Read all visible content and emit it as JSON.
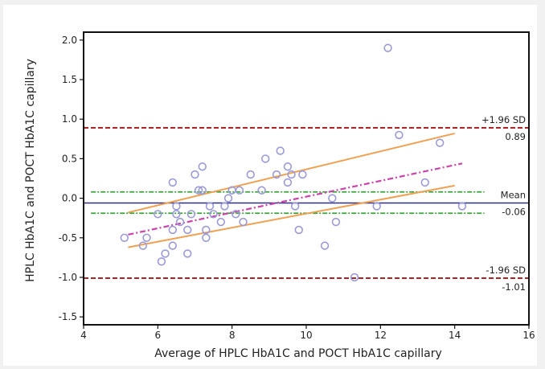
{
  "chart_data": {
    "type": "scatter",
    "title": "",
    "xlabel": "Average of HPLC HbA1C and POCT HbA1C capillary",
    "ylabel": "HPLC HbA1C and POCT HbA1C capillary",
    "xlim": [
      4,
      16
    ],
    "ylim": [
      -1.6,
      2.1
    ],
    "xticks": [
      4,
      6,
      8,
      10,
      12,
      14,
      16
    ],
    "yticks": [
      -1.5,
      -1.0,
      -0.5,
      0.0,
      0.5,
      1.0,
      1.5,
      2.0
    ],
    "xtick_labels": [
      "4",
      "6",
      "8",
      "10",
      "12",
      "14",
      "16"
    ],
    "ytick_labels": [
      "-1.5",
      "-1.0",
      "-0.5",
      "0.0",
      "0.5",
      "1.0",
      "1.5",
      "2.0"
    ],
    "grid": false,
    "points": [
      {
        "x": 5.1,
        "y": -0.5
      },
      {
        "x": 5.6,
        "y": -0.6
      },
      {
        "x": 5.7,
        "y": -0.5
      },
      {
        "x": 6.0,
        "y": -0.2
      },
      {
        "x": 6.1,
        "y": -0.8
      },
      {
        "x": 6.2,
        "y": -0.7
      },
      {
        "x": 6.4,
        "y": -0.6
      },
      {
        "x": 6.4,
        "y": -0.4
      },
      {
        "x": 6.4,
        "y": 0.2
      },
      {
        "x": 6.5,
        "y": -0.2
      },
      {
        "x": 6.5,
        "y": -0.1
      },
      {
        "x": 6.6,
        "y": -0.3
      },
      {
        "x": 6.8,
        "y": -0.7
      },
      {
        "x": 6.8,
        "y": -0.4
      },
      {
        "x": 6.9,
        "y": -0.2
      },
      {
        "x": 7.0,
        "y": 0.3
      },
      {
        "x": 7.1,
        "y": 0.1
      },
      {
        "x": 7.2,
        "y": 0.4
      },
      {
        "x": 7.2,
        "y": 0.1
      },
      {
        "x": 7.3,
        "y": -0.4
      },
      {
        "x": 7.3,
        "y": -0.5
      },
      {
        "x": 7.4,
        "y": -0.1
      },
      {
        "x": 7.5,
        "y": -0.2
      },
      {
        "x": 7.7,
        "y": -0.3
      },
      {
        "x": 7.8,
        "y": -0.1
      },
      {
        "x": 7.9,
        "y": 0.0
      },
      {
        "x": 8.0,
        "y": 0.1
      },
      {
        "x": 8.1,
        "y": -0.2
      },
      {
        "x": 8.2,
        "y": 0.1
      },
      {
        "x": 8.3,
        "y": -0.3
      },
      {
        "x": 8.5,
        "y": 0.3
      },
      {
        "x": 8.8,
        "y": 0.1
      },
      {
        "x": 8.9,
        "y": 0.5
      },
      {
        "x": 9.2,
        "y": 0.3
      },
      {
        "x": 9.3,
        "y": 0.6
      },
      {
        "x": 9.5,
        "y": 0.2
      },
      {
        "x": 9.5,
        "y": 0.4
      },
      {
        "x": 9.6,
        "y": 0.3
      },
      {
        "x": 9.7,
        "y": -0.1
      },
      {
        "x": 9.8,
        "y": -0.4
      },
      {
        "x": 9.9,
        "y": 0.3
      },
      {
        "x": 10.5,
        "y": -0.6
      },
      {
        "x": 10.7,
        "y": 0.0
      },
      {
        "x": 10.8,
        "y": -0.3
      },
      {
        "x": 11.3,
        "y": -1.0
      },
      {
        "x": 11.9,
        "y": -0.1
      },
      {
        "x": 12.2,
        "y": 1.9
      },
      {
        "x": 12.5,
        "y": 0.8
      },
      {
        "x": 13.2,
        "y": 0.2
      },
      {
        "x": 13.6,
        "y": 0.7
      },
      {
        "x": 14.2,
        "y": -0.1
      }
    ],
    "reference_lines": [
      {
        "id": "upper-loa",
        "value": 0.89,
        "label": "+1.96 SD",
        "value_label": "0.89",
        "color": "#b22222",
        "style": "dashed"
      },
      {
        "id": "mean",
        "value": -0.06,
        "label": "Mean",
        "value_label": "-0.06",
        "color": "#303080",
        "style": "solid"
      },
      {
        "id": "lower-loa",
        "value": -1.01,
        "label": "-1.96 SD",
        "value_label": "-1.01",
        "color": "#b22222",
        "style": "dashed"
      }
    ],
    "mean_ci": {
      "lower": -0.19,
      "upper": 0.08,
      "color": "#3aa03a",
      "style": "dash-dot"
    },
    "regression": {
      "x_from": 5.2,
      "x_to": 14.2,
      "intercept": -0.98,
      "slope": 0.1,
      "color": "#cc44aa",
      "style": "dash-dot"
    },
    "regression_ci_upper": {
      "x_from": 5.2,
      "x_to": 14.0,
      "y_from": -0.18,
      "y_to": 0.82,
      "color": "#f0a050"
    },
    "regression_ci_lower": {
      "x_from": 5.2,
      "x_to": 14.0,
      "y_from": -0.62,
      "y_to": 0.16,
      "color": "#f0a050"
    },
    "marker_color": "#9a9ad8"
  }
}
